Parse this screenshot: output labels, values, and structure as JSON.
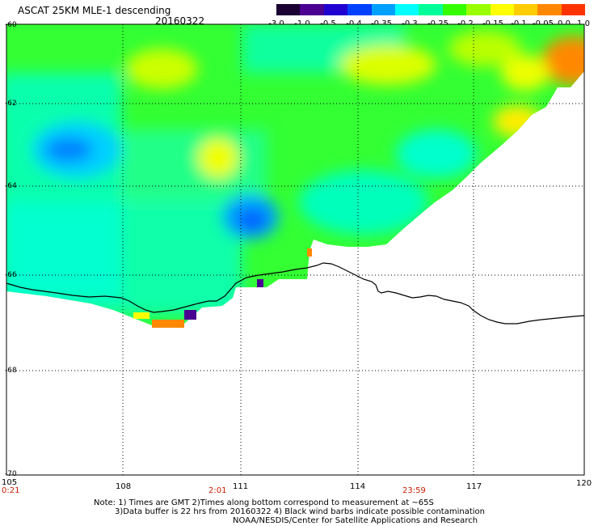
{
  "header": {
    "title": "ASCAT 25KM MLE-1 descending",
    "date": "20160322"
  },
  "colorbar": {
    "labels": [
      "-3.0",
      "-1.0",
      "-0.5",
      "-0.4",
      "-0.35",
      "-0.3",
      "-0.25",
      "-0.2",
      "-0.15",
      "-0.1",
      "-0.05",
      "0.0",
      "1.0"
    ],
    "colors": [
      "#1a0033",
      "#4a0090",
      "#2000d0",
      "#0040ff",
      "#00a0ff",
      "#00ffff",
      "#00ff99",
      "#33ff00",
      "#99ff00",
      "#ffff00",
      "#ffcc00",
      "#ff8800",
      "#ff3300"
    ]
  },
  "axes": {
    "x_ticks": [
      "105",
      "108",
      "111",
      "114",
      "117",
      "120"
    ],
    "y_ticks": [
      "-60",
      "-62",
      "-64",
      "-66",
      "-68",
      "-70"
    ],
    "times": [
      "0:21",
      "2:01",
      "23:59"
    ]
  },
  "notes": {
    "line1": "Note: 1) Times are GMT 2)Times along bottom correspond to measurement at ~65S",
    "line2": "3)Data buffer is 22 hrs from 20160322 4) Black wind barbs indicate possible contamination",
    "line3": "NOAA/NESDIS/Center for Satellite Applications and Research"
  }
}
